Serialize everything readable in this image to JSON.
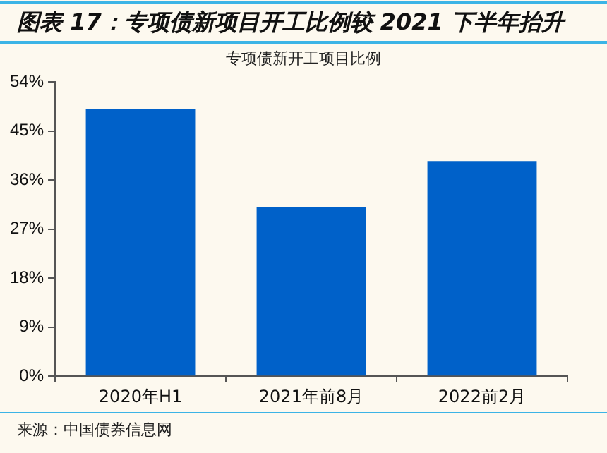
{
  "chart_data": {
    "type": "bar",
    "title": "图表 17：专项债新项目开工比例较 2021 下半年抬升",
    "subtitle": "专项债新开工项目比例",
    "categories": [
      "2020年H1",
      "2021年前8月",
      "2022前2月"
    ],
    "values": [
      49,
      31,
      39.5
    ],
    "color": "#0061c9",
    "ylim": [
      0,
      54
    ],
    "yticks": [
      {
        "value": 0,
        "label": "0%"
      },
      {
        "value": 9,
        "label": "9%"
      },
      {
        "value": 18,
        "label": "18%"
      },
      {
        "value": 27,
        "label": "27%"
      },
      {
        "value": 36,
        "label": "36%"
      },
      {
        "value": 45,
        "label": "45%"
      },
      {
        "value": 54,
        "label": "54%"
      }
    ],
    "grid": false,
    "legend": false,
    "annotations": [
      "来源：中国债券信息网"
    ]
  }
}
